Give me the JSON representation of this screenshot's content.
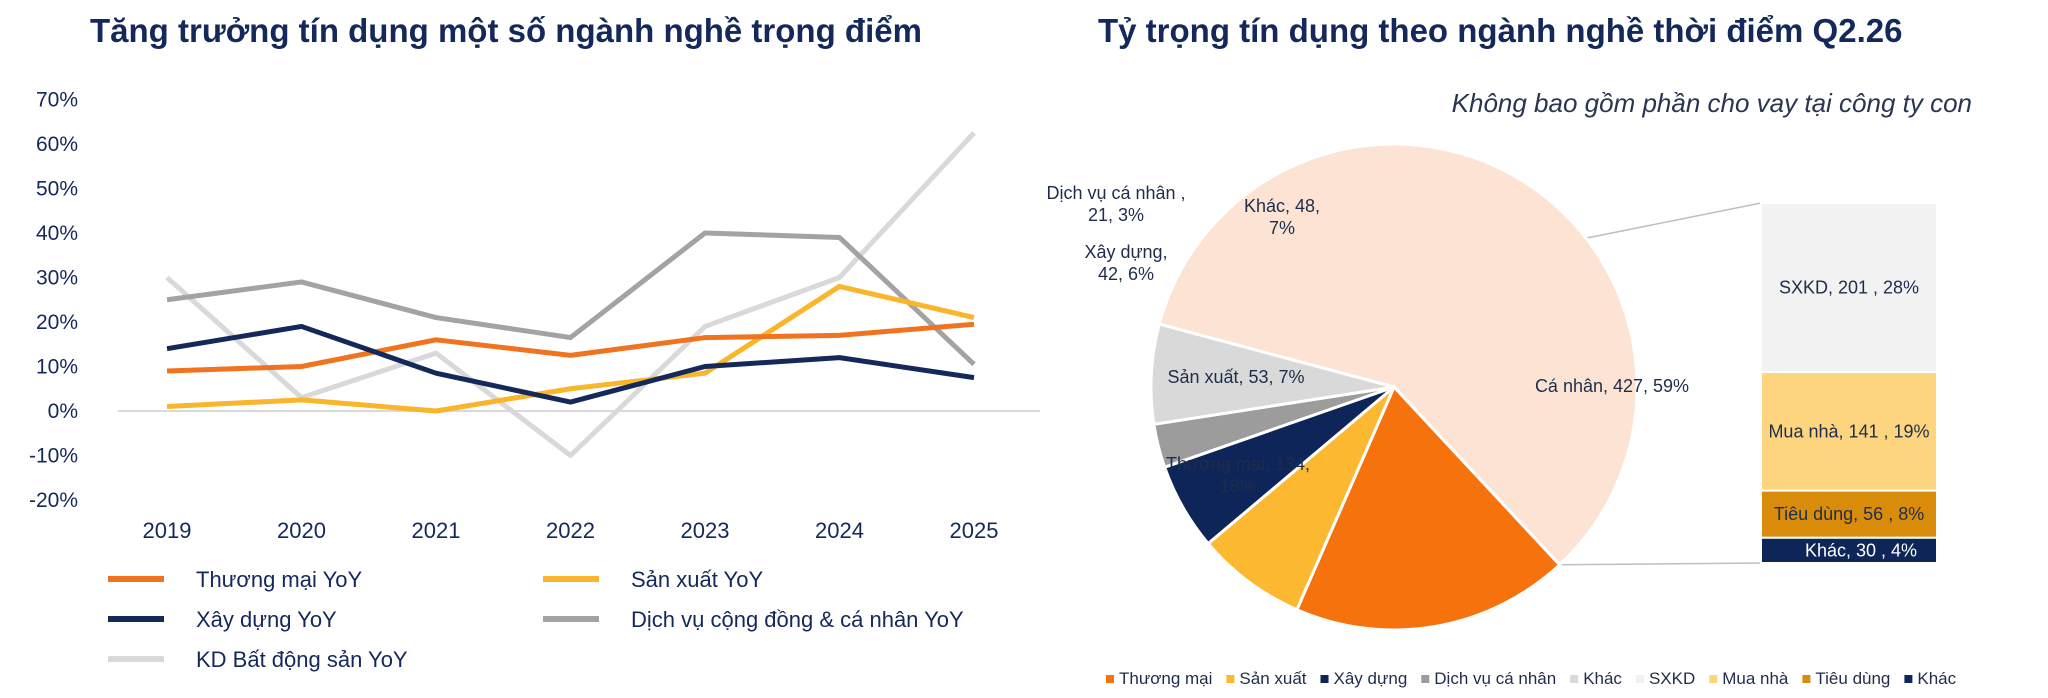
{
  "left_title": "Tăng trưởng tín dụng một số ngành nghề trọng điểm",
  "right_title": "Tỷ trọng tín dụng  theo ngành nghề thời điểm Q2.26",
  "right_subtitle": "Không bao gồm phần cho vay tại công ty con",
  "chart_data": [
    {
      "type": "line",
      "title": "Tăng trưởng tín dụng một số ngành nghề trọng điểm",
      "categories": [
        "2019",
        "2020",
        "2021",
        "2022",
        "2023",
        "2024",
        "2025"
      ],
      "ylim": [
        -20,
        70
      ],
      "yticks": [
        -20,
        -10,
        0,
        10,
        20,
        30,
        40,
        50,
        60,
        70
      ],
      "ytick_labels": [
        "-20%",
        "-10%",
        "0%",
        "10%",
        "20%",
        "30%",
        "40%",
        "50%",
        "60%",
        "70%"
      ],
      "grid": false,
      "legend_position": "bottom",
      "series": [
        {
          "name": "Thương mại YoY",
          "color": "#f07320",
          "values": [
            9,
            10,
            16,
            12.5,
            16.5,
            17,
            19.5
          ]
        },
        {
          "name": "Sản xuất YoY",
          "color": "#f9b52b",
          "values": [
            1,
            2.5,
            0,
            5,
            8.5,
            28,
            21
          ]
        },
        {
          "name": "Xây dựng YoY",
          "color": "#14285a",
          "values": [
            14,
            19,
            8.5,
            2,
            10,
            12,
            7.5
          ]
        },
        {
          "name": "Dịch vụ cộng đồng & cá nhân YoY",
          "color": "#a3a3a3",
          "values": [
            25,
            29,
            21,
            16.5,
            40,
            39,
            10.5
          ]
        },
        {
          "name": "KD Bất động sản YoY",
          "color": "#d9d9d9",
          "values": [
            30,
            3,
            13,
            -10,
            19,
            30,
            62.5
          ]
        }
      ]
    },
    {
      "type": "pie",
      "title": "Tỷ trọng tín dụng  theo ngành nghề thời điểm Q2.26",
      "subtitle": "Không bao gồm phần cho vay tại công ty con",
      "slices": [
        {
          "name": "Cá nhân",
          "value": 427,
          "percent": 59,
          "label": "Cá nhân, 427, 59%",
          "color": "#fde3d3"
        },
        {
          "name": "Thương mại",
          "value": 134,
          "percent": 18,
          "label": [
            "Thương mại, 134,",
            "18%"
          ],
          "color": "#f5720d"
        },
        {
          "name": "Sản xuất",
          "value": 53,
          "percent": 7,
          "label": "Sản xuất, 53, 7%",
          "color": "#fcb830"
        },
        {
          "name": "Xây dựng",
          "value": 42,
          "percent": 6,
          "label": [
            "Xây dựng,",
            "42, 6%"
          ],
          "color": "#0d2558"
        },
        {
          "name": "Dịch vụ cá nhân",
          "value": 21,
          "percent": 3,
          "label": [
            "Dịch vụ cá nhân ,",
            "21, 3%"
          ],
          "color": "#9c9c9c"
        },
        {
          "name": "Khác",
          "value": 48,
          "percent": 7,
          "label": [
            "Khác, 48,",
            "7%"
          ],
          "color": "#d9d9d9"
        }
      ],
      "breakdown_of": "Cá nhân",
      "breakdown": [
        {
          "name": "SXKD",
          "value": 201,
          "percent": 28,
          "label": "SXKD,  201 , 28%",
          "color": "#f2f2f2"
        },
        {
          "name": "Mua nhà",
          "value": 141,
          "percent": 19,
          "label": "Mua nhà,  141 , 19%",
          "color": "#fdd57f"
        },
        {
          "name": "Tiêu dùng",
          "value": 56,
          "percent": 8,
          "label": "Tiêu dùng,  56 , 8%",
          "color": "#d98c0a"
        },
        {
          "name": "Khác",
          "value": 30,
          "percent": 4,
          "label": "Khác,  30 , 4%",
          "color": "#0d2558"
        }
      ],
      "legend_position": "bottom",
      "legend": [
        {
          "name": "Thương mại",
          "color": "#f5720d"
        },
        {
          "name": "Sản xuất",
          "color": "#fcb830"
        },
        {
          "name": "Xây dựng",
          "color": "#0d2558"
        },
        {
          "name": "Dịch vụ cá nhân",
          "color": "#9c9c9c"
        },
        {
          "name": "Khác",
          "color": "#d9d9d9"
        },
        {
          "name": "SXKD",
          "color": "#f2f2f2"
        },
        {
          "name": "Mua nhà",
          "color": "#fdd57f"
        },
        {
          "name": "Tiêu dùng",
          "color": "#d98c0a"
        },
        {
          "name": "Khác",
          "color": "#0d2558"
        }
      ]
    }
  ]
}
